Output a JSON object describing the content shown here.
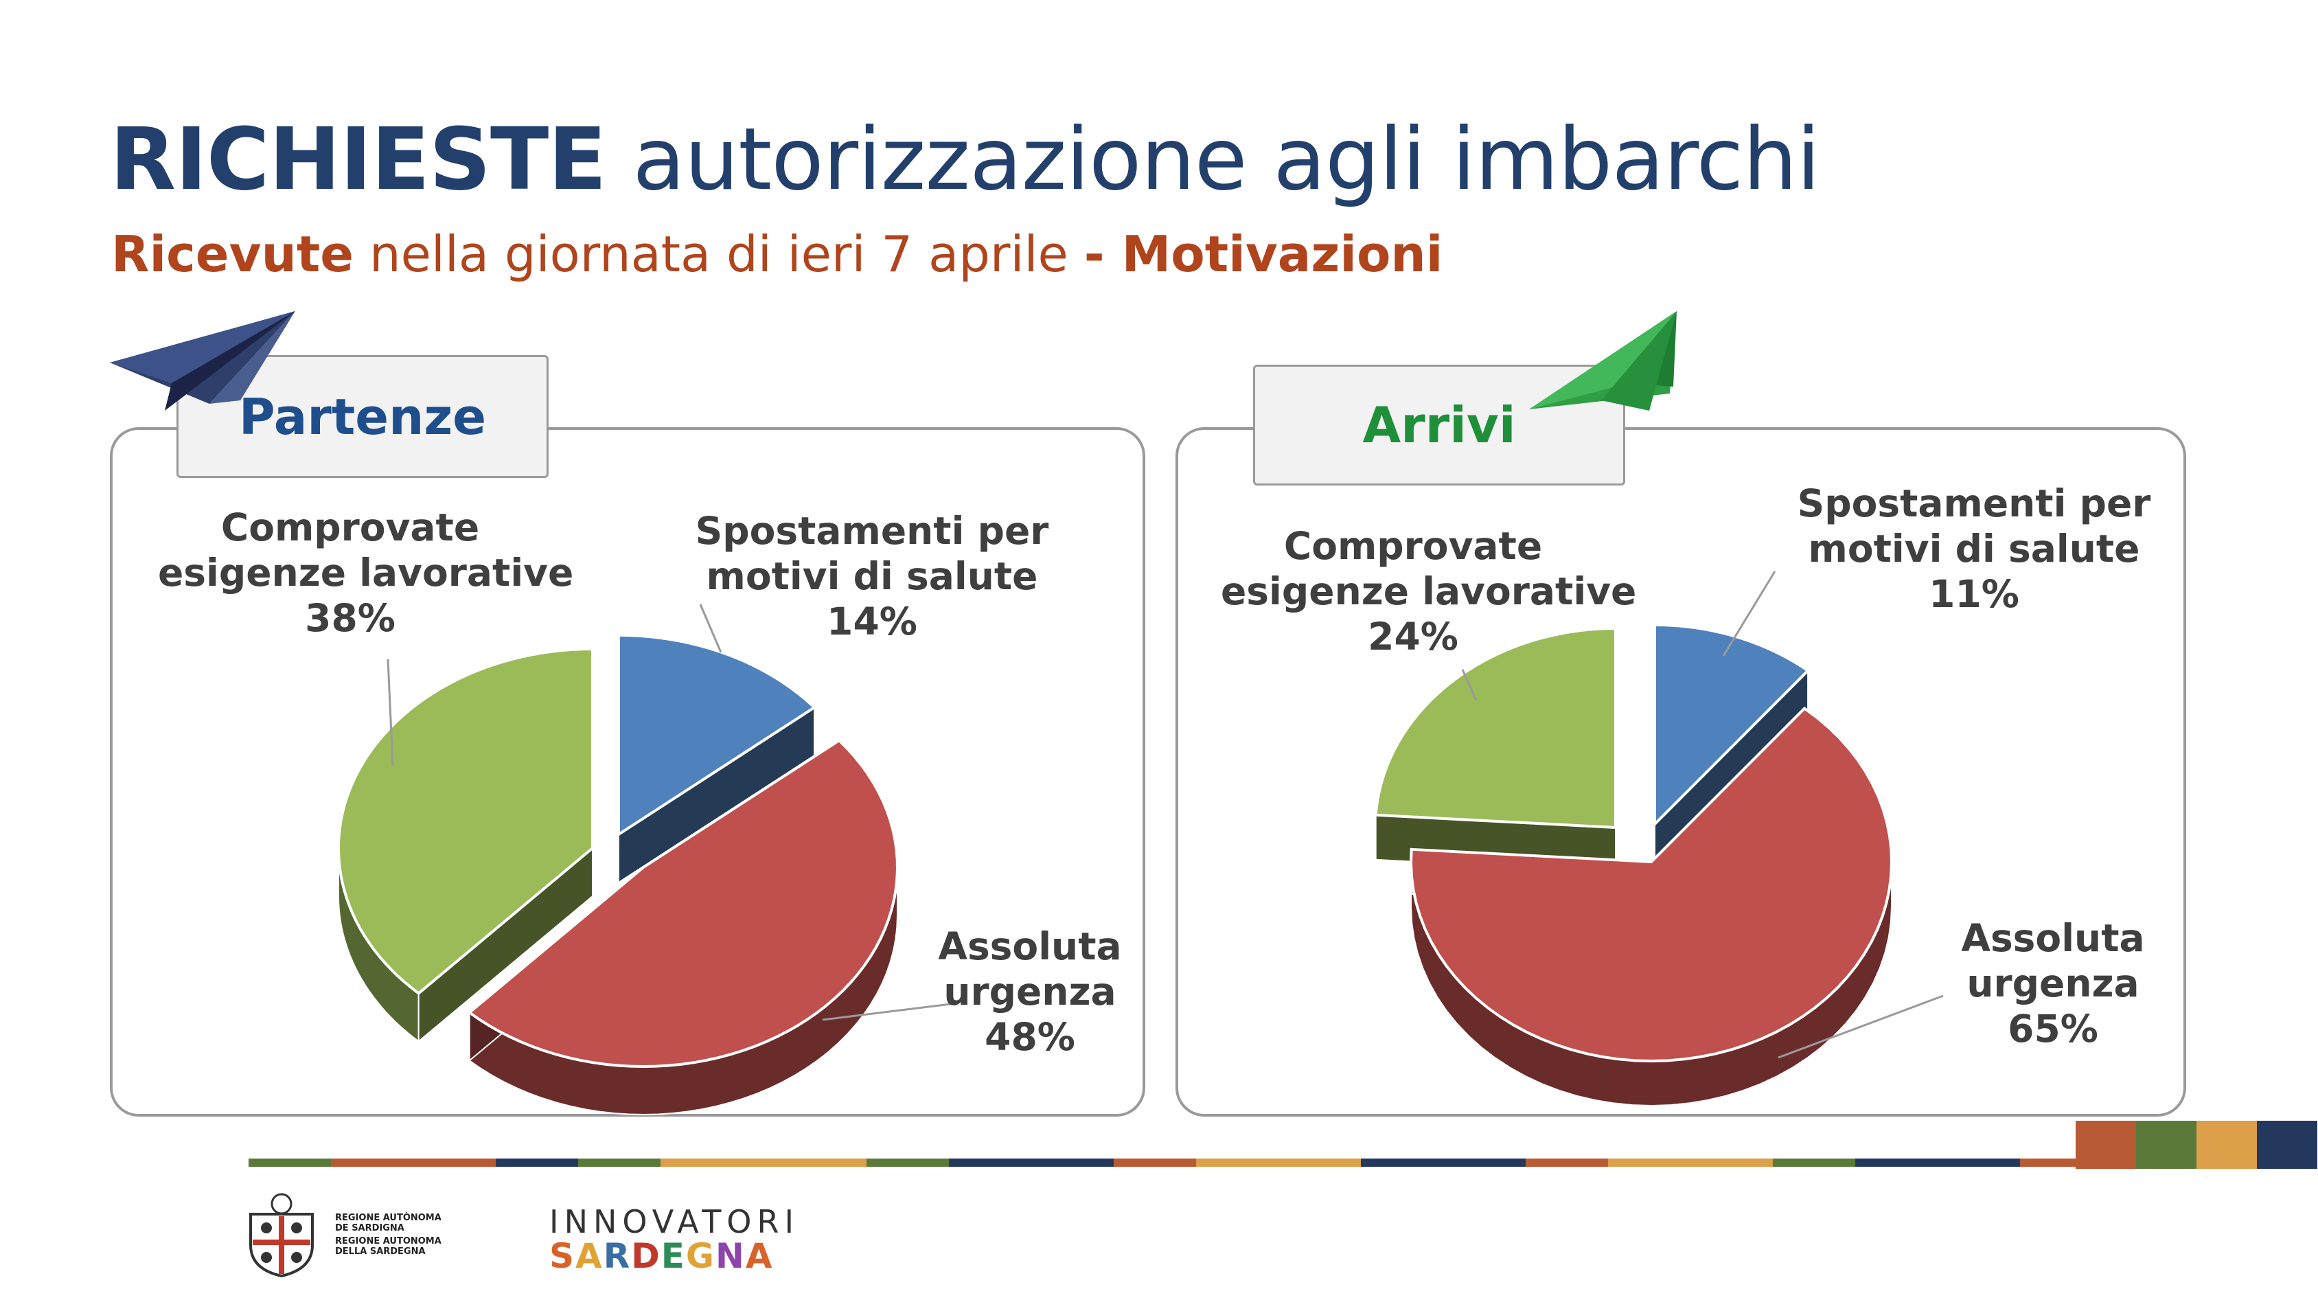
{
  "title": {
    "bold": "RICHIESTE",
    "rest": " autorizzazione agli imbarchi"
  },
  "subtitle": {
    "bold1": "Ricevute",
    "mid": " nella giornata di ieri 7 aprile ",
    "bold2": "- Motivazioni"
  },
  "colors": {
    "blue": "#4f81bd",
    "red": "#c0504d",
    "green": "#9bbb59",
    "title": "#22406b",
    "subtitle": "#b0441c",
    "partenze": "#1f4e8c",
    "arrivi": "#1f8f3a"
  },
  "chart_data": [
    {
      "type": "pie",
      "title": "Partenze",
      "slices": [
        {
          "label": "Spostamenti per motivi di salute",
          "lines": [
            "Spostamenti per",
            "motivi di salute"
          ],
          "pct_text": "14%",
          "value": 14,
          "color": "#4f81bd"
        },
        {
          "label": "Assoluta urgenza",
          "lines": [
            "Assoluta",
            "urgenza"
          ],
          "pct_text": "48%",
          "value": 48,
          "color": "#c0504d"
        },
        {
          "label": "Comprovate esigenze lavorative",
          "lines": [
            "Comprovate",
            "esigenze lavorative"
          ],
          "pct_text": "38%",
          "value": 38,
          "color": "#9bbb59"
        }
      ]
    },
    {
      "type": "pie",
      "title": "Arrivi",
      "slices": [
        {
          "label": "Spostamenti per motivi di salute",
          "lines": [
            "Spostamenti per",
            "motivi di salute"
          ],
          "pct_text": "11%",
          "value": 11,
          "color": "#4f81bd"
        },
        {
          "label": "Assoluta urgenza",
          "lines": [
            "Assoluta",
            "urgenza"
          ],
          "pct_text": "65%",
          "value": 65,
          "color": "#c0504d"
        },
        {
          "label": "Comprovate esigenze lavorative",
          "lines": [
            "Comprovate",
            "esigenze lavorative"
          ],
          "pct_text": "24%",
          "value": 24,
          "color": "#9bbb59"
        }
      ]
    }
  ],
  "footer": {
    "region_lines": [
      "REGIONE AUTÒNOMA",
      "DE SARDIGNA",
      "REGIONE AUTONOMA",
      "DELLA SARDEGNA"
    ],
    "innovatori": "INNOVATORI",
    "sardegna": "SARDEGNA"
  }
}
